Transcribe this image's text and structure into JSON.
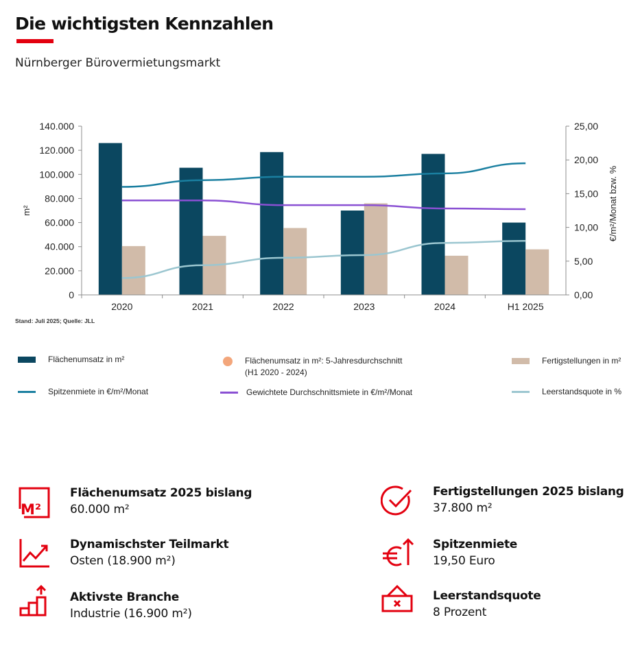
{
  "header": {
    "title": "Die wichtigsten Kennzahlen",
    "subtitle": "Nürnberger Bürovermietungsmarkt"
  },
  "source_note": "Stand: Juli 2025; Quelle: JLL",
  "colors": {
    "accent_red": "#e3000f",
    "flaechenumsatz": "#0b4760",
    "fertigstellungen": "#d1bba9",
    "spitzenmiete": "#1a7fa0",
    "durchschnittsmiete": "#8a50d3",
    "leerstand": "#9bc6d0",
    "fuenfjahresschnitt": "#f3a67b"
  },
  "chart_data": {
    "type": "bar",
    "categories": [
      "2020",
      "2021",
      "2022",
      "2023",
      "2024",
      "H1 2025"
    ],
    "series": [
      {
        "name": "Flächenumsatz in m²",
        "type": "bar",
        "axis": "left",
        "values": [
          126000,
          105500,
          118500,
          70000,
          117000,
          60000
        ]
      },
      {
        "name": "Fertigstellungen in m²",
        "type": "bar",
        "axis": "left",
        "values": [
          40500,
          49000,
          55500,
          76000,
          32500,
          37800
        ]
      },
      {
        "name": "Spitzenmiete in €/m²/Monat",
        "type": "line",
        "axis": "right",
        "values": [
          16.0,
          17.0,
          17.5,
          17.5,
          18.0,
          19.5
        ]
      },
      {
        "name": "Gewichtete Durchschnittsmiete  in €/m²/Monat",
        "type": "line",
        "axis": "right",
        "values": [
          14.0,
          14.0,
          13.3,
          13.3,
          12.8,
          12.7
        ]
      },
      {
        "name": "Leerstandsquote in %",
        "type": "line",
        "axis": "right",
        "values": [
          2.5,
          4.4,
          5.5,
          5.9,
          7.7,
          8.0
        ]
      }
    ],
    "ylabel": "m²",
    "ylim": [
      0,
      140000
    ],
    "yticks": [
      "0",
      "20.000",
      "40.000",
      "60.000",
      "80.000",
      "100.000",
      "120.000",
      "140.000"
    ],
    "y2label": "€/m²/Monat bzw. %",
    "y2lim": [
      0,
      25
    ],
    "y2ticks": [
      "0,00",
      "5,00",
      "10,00",
      "15,00",
      "20,00",
      "25,00"
    ],
    "grid": false,
    "legend_position": "bottom"
  },
  "legend": [
    {
      "label": "Flächenumsatz in m²",
      "kind": "rect",
      "color": "#0b4760"
    },
    {
      "label": "Flächenumsatz in m²: 5-Jahresdurchschnitt\n(H1 2020 - 2024)",
      "kind": "dot",
      "color": "#f3a67b"
    },
    {
      "label": "Fertigstellungen in m²",
      "kind": "rect",
      "color": "#d1bba9"
    },
    {
      "label": "Spitzenmiete in €/m²/Monat",
      "kind": "line",
      "color": "#1a7fa0"
    },
    {
      "label": "Gewichtete Durchschnittsmiete  in €/m²/Monat",
      "kind": "line",
      "color": "#8a50d3"
    },
    {
      "label": "Leerstandsquote in %",
      "kind": "line",
      "color": "#9bc6d0"
    }
  ],
  "kpis": [
    {
      "icon": "m2-icon",
      "label": "Flächenumsatz 2025 bislang",
      "value": "60.000 m²"
    },
    {
      "icon": "growth-chart-icon",
      "label": "Dynamischster Teilmarkt",
      "value": "Osten (18.900 m²)"
    },
    {
      "icon": "rising-bars-icon",
      "label": "Aktivste Branche",
      "value": "Industrie (16.900 m²)"
    },
    {
      "icon": "check-circle-icon",
      "label": "Fertigstellungen 2025 bislang",
      "value": "37.800 m²"
    },
    {
      "icon": "euro-up-icon",
      "label": "Spitzenmiete",
      "value": "19,50 Euro"
    },
    {
      "icon": "vacancy-sign-icon",
      "label": "Leerstandsquote",
      "value": "8 Prozent"
    }
  ]
}
